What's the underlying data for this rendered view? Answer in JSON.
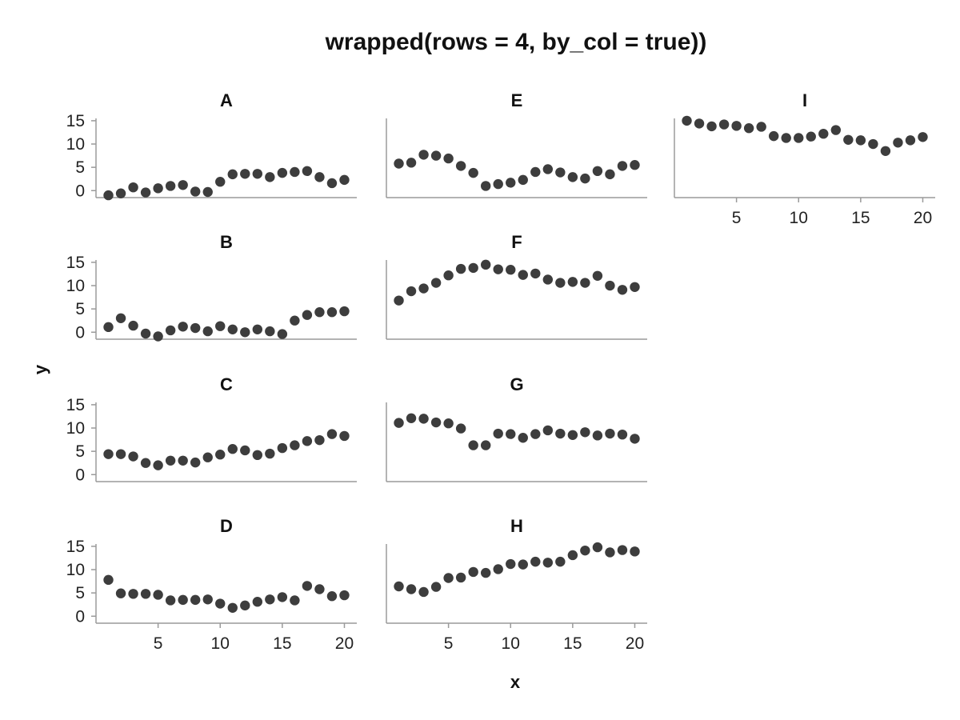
{
  "chart_data": {
    "type": "scatter",
    "title": "wrapped(rows = 4, by_col = true))",
    "xlabel": "x",
    "ylabel": "y",
    "layout": "wrapped rows=4 by column",
    "xlim": [
      0,
      21
    ],
    "ylim": [
      -1.5,
      15.5
    ],
    "xticks": [
      5,
      10,
      15,
      20
    ],
    "yticks": [
      0,
      5,
      10,
      15
    ],
    "marker_color": "#3d3d3d",
    "axis_color": "#9a9a9a",
    "x": [
      1,
      2,
      3,
      4,
      5,
      6,
      7,
      8,
      9,
      10,
      11,
      12,
      13,
      14,
      15,
      16,
      17,
      18,
      19,
      20
    ],
    "panels": [
      {
        "label": "A",
        "values": [
          -1.0,
          -0.6,
          0.7,
          -0.4,
          0.5,
          1.0,
          1.2,
          -0.2,
          -0.3,
          1.9,
          3.5,
          3.6,
          3.6,
          2.9,
          3.8,
          4.0,
          4.2,
          2.9,
          1.6,
          2.3
        ]
      },
      {
        "label": "B",
        "values": [
          1.1,
          3.0,
          1.4,
          -0.3,
          -0.9,
          0.4,
          1.2,
          0.9,
          0.2,
          1.3,
          0.6,
          0.0,
          0.6,
          0.2,
          -0.4,
          2.5,
          3.7,
          4.3,
          4.3,
          4.5
        ]
      },
      {
        "label": "C",
        "values": [
          4.4,
          4.4,
          3.9,
          2.5,
          2.0,
          3.0,
          3.0,
          2.6,
          3.7,
          4.3,
          5.5,
          5.2,
          4.2,
          4.5,
          5.7,
          6.3,
          7.2,
          7.4,
          8.7,
          8.3
        ]
      },
      {
        "label": "D",
        "values": [
          7.8,
          4.9,
          4.8,
          4.8,
          4.6,
          3.4,
          3.5,
          3.5,
          3.6,
          2.7,
          1.8,
          2.3,
          3.1,
          3.6,
          4.1,
          3.4,
          6.5,
          5.8,
          4.3,
          4.5
        ]
      },
      {
        "label": "E",
        "values": [
          5.8,
          6.0,
          7.7,
          7.5,
          6.9,
          5.3,
          3.8,
          1.0,
          1.4,
          1.7,
          2.3,
          4.0,
          4.6,
          3.9,
          2.9,
          2.6,
          4.2,
          3.5,
          5.3,
          5.5
        ]
      },
      {
        "label": "F",
        "values": [
          6.8,
          8.8,
          9.4,
          10.6,
          12.2,
          13.6,
          13.8,
          14.5,
          13.5,
          13.4,
          12.3,
          12.6,
          11.3,
          10.6,
          10.8,
          10.6,
          12.1,
          10.0,
          9.1,
          9.7
        ]
      },
      {
        "label": "G",
        "values": [
          11.1,
          12.1,
          12.0,
          11.2,
          11.0,
          9.9,
          6.3,
          6.3,
          8.8,
          8.7,
          7.9,
          8.7,
          9.5,
          8.8,
          8.5,
          9.1,
          8.4,
          8.8,
          8.6,
          7.7
        ]
      },
      {
        "label": "H",
        "values": [
          6.4,
          5.8,
          5.2,
          6.3,
          8.2,
          8.3,
          9.5,
          9.3,
          10.1,
          11.2,
          11.1,
          11.7,
          11.5,
          11.7,
          13.1,
          14.1,
          14.8,
          13.7,
          14.2,
          13.9
        ]
      },
      {
        "label": "I",
        "values": [
          15.0,
          14.4,
          13.8,
          14.2,
          13.9,
          13.4,
          13.7,
          11.7,
          11.3,
          11.3,
          11.6,
          12.2,
          13.0,
          10.9,
          10.8,
          10.0,
          8.5,
          10.3,
          10.8,
          11.5
        ]
      }
    ]
  }
}
